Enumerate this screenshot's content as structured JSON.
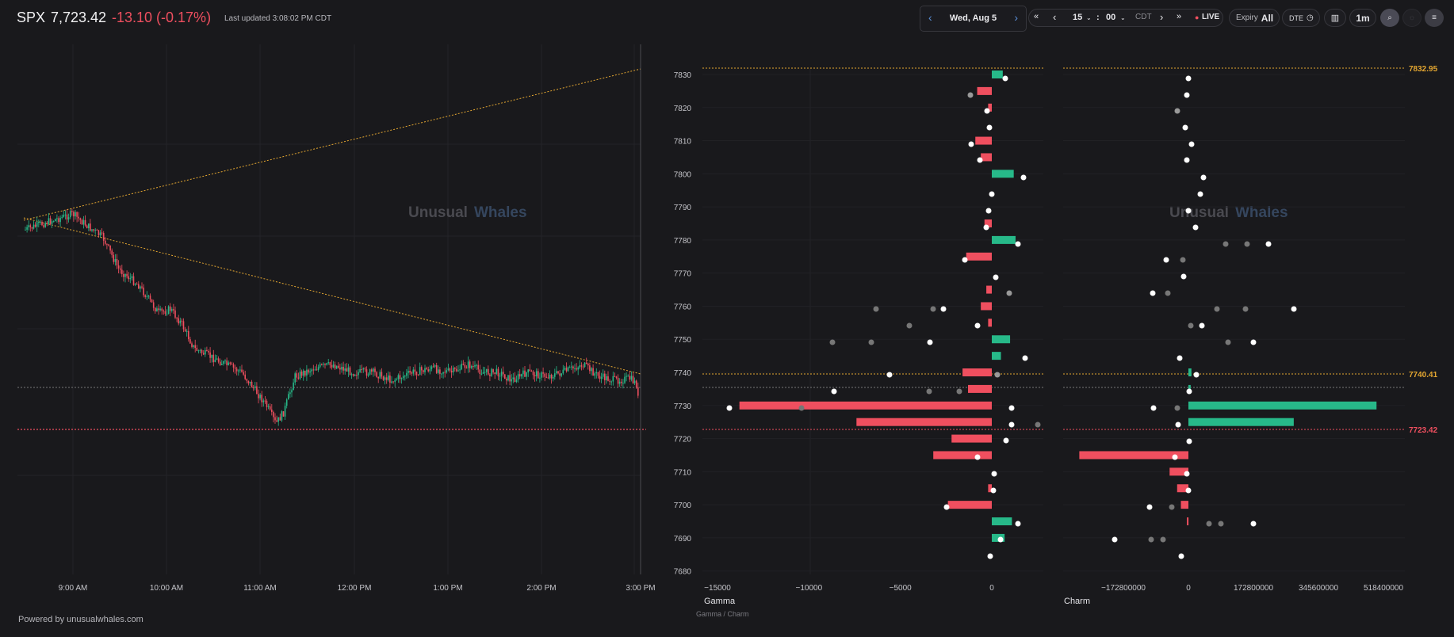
{
  "header": {
    "symbol": "SPX",
    "price": "7,723.42",
    "change": "-13.10 (-0.17%)",
    "last_updated": "Last updated 3:08:02 PM CDT",
    "date": "Wed, Aug 5",
    "hour": "15",
    "minute": "00",
    "tz": "CDT",
    "live": "LIVE",
    "expiry_label": "Expiry",
    "expiry_value": "All",
    "dte_label": "DTE",
    "interval": "1m"
  },
  "colors": {
    "up": "#27b989",
    "down": "#ef4f5f",
    "level": "#e3a631",
    "accent": "#5b8fd8"
  },
  "watermark": {
    "word1": "Unusual",
    "word2": "Whales"
  },
  "footer": "Powered by unusualwhales.com",
  "price_chart": {
    "time_labels": [
      "9:00 AM",
      "10:00 AM",
      "11:00 AM",
      "12:00 PM",
      "1:00 PM",
      "2:00 PM",
      "3:00 PM"
    ],
    "current_price": 7723.42
  },
  "strike_axis": {
    "labels": [
      "7830",
      "7820",
      "7810",
      "7800",
      "7790",
      "7780",
      "7770",
      "7760",
      "7750",
      "7740",
      "7730",
      "7720",
      "7710",
      "7700",
      "7690",
      "7680"
    ]
  },
  "levels": [
    {
      "label": "7832.95",
      "kind": "level"
    },
    {
      "label": "7740.41",
      "kind": "level"
    },
    {
      "label": "7723.42",
      "kind": "price"
    }
  ],
  "gamma": {
    "title": "Gamma",
    "subtitle": "Gamma / Charm",
    "tick_labels": [
      "−15000",
      "−10000",
      "−5000",
      "0"
    ],
    "tick_values": [
      -15000,
      -10000,
      -5000,
      0
    ],
    "bars": [
      {
        "strike": 7830,
        "value": 600
      },
      {
        "strike": 7825,
        "value": -800
      },
      {
        "strike": 7820,
        "value": -200
      },
      {
        "strike": 7810,
        "value": -900
      },
      {
        "strike": 7805,
        "value": -600
      },
      {
        "strike": 7800,
        "value": 1200
      },
      {
        "strike": 7785,
        "value": -400
      },
      {
        "strike": 7780,
        "value": 1300
      },
      {
        "strike": 7775,
        "value": -1400
      },
      {
        "strike": 7765,
        "value": -300
      },
      {
        "strike": 7760,
        "value": -600
      },
      {
        "strike": 7755,
        "value": -200
      },
      {
        "strike": 7750,
        "value": 1000
      },
      {
        "strike": 7745,
        "value": 500
      },
      {
        "strike": 7740,
        "value": -1600
      },
      {
        "strike": 7735,
        "value": -1300
      },
      {
        "strike": 7730,
        "value": -13800
      },
      {
        "strike": 7725,
        "value": -7400
      },
      {
        "strike": 7720,
        "value": -2200
      },
      {
        "strike": 7715,
        "value": -3200
      },
      {
        "strike": 7700,
        "value": -2400
      },
      {
        "strike": 7705,
        "value": -200
      },
      {
        "strike": 7695,
        "value": 1100
      },
      {
        "strike": 7690,
        "value": 700
      }
    ]
  },
  "charm": {
    "title": "Charm",
    "tick_labels": [
      "−172800000",
      "0",
      "172800000",
      "345600000",
      "518400000"
    ],
    "tick_values": [
      -172800000,
      0,
      172800000,
      345600000,
      518400000
    ],
    "bars": [
      {
        "strike": 7740,
        "value": 8000000
      },
      {
        "strike": 7735,
        "value": 6000000
      },
      {
        "strike": 7730,
        "value": 500000000
      },
      {
        "strike": 7725,
        "value": 280000000
      },
      {
        "strike": 7715,
        "value": -290000000
      },
      {
        "strike": 7710,
        "value": -50000000
      },
      {
        "strike": 7705,
        "value": -30000000
      },
      {
        "strike": 7700,
        "value": -20000000
      },
      {
        "strike": 7695,
        "value": -4000000
      }
    ]
  }
}
